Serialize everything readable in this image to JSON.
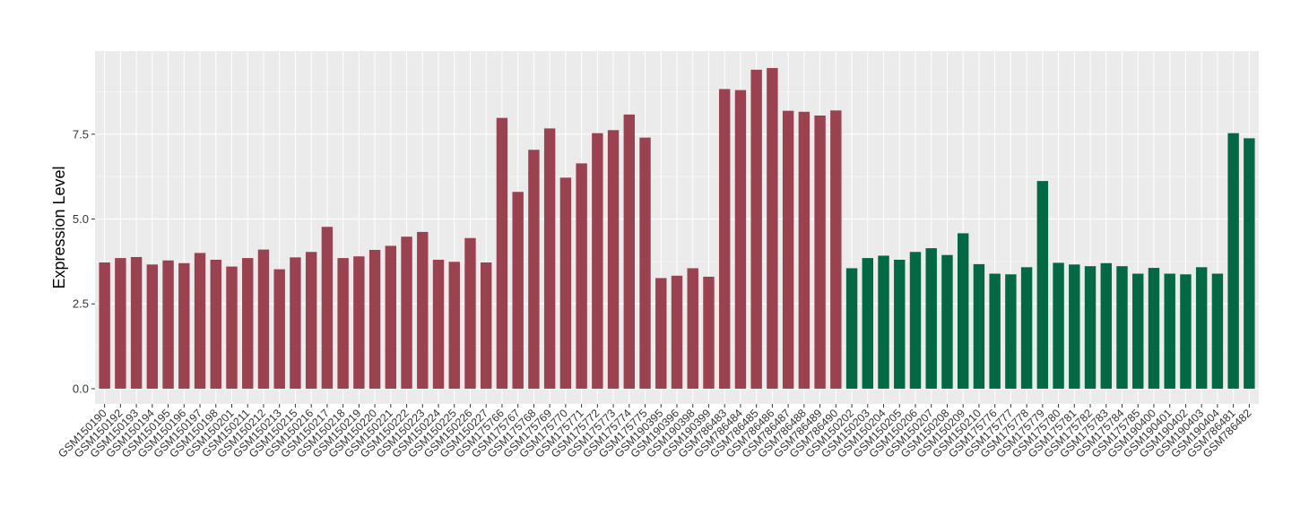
{
  "chart_data": {
    "type": "bar",
    "ylabel": "Expression Level",
    "xlabel": "",
    "title": "",
    "ylim": [
      -0.45,
      9.95
    ],
    "yticks": [
      0.0,
      2.5,
      5.0,
      7.5
    ],
    "ytick_labels": [
      "0.0",
      "2.5",
      "5.0",
      "7.5"
    ],
    "grid": true,
    "legend": "none",
    "colors": {
      "group1": "#9B4250",
      "group2": "#036844",
      "panel": "#EBEBEB",
      "grid_major": "#FFFFFF",
      "grid_minor": "#F5F5F5"
    },
    "categories": [
      "GSM150190",
      "GSM150192",
      "GSM150193",
      "GSM150194",
      "GSM150195",
      "GSM150196",
      "GSM150197",
      "GSM150198",
      "GSM150201",
      "GSM150211",
      "GSM150212",
      "GSM150213",
      "GSM150215",
      "GSM150216",
      "GSM150217",
      "GSM150218",
      "GSM150219",
      "GSM150220",
      "GSM150221",
      "GSM150222",
      "GSM150223",
      "GSM150224",
      "GSM150225",
      "GSM150226",
      "GSM150227",
      "GSM175766",
      "GSM175767",
      "GSM175768",
      "GSM175769",
      "GSM175770",
      "GSM175771",
      "GSM175772",
      "GSM175773",
      "GSM175774",
      "GSM175775",
      "GSM190395",
      "GSM190396",
      "GSM190398",
      "GSM190399",
      "GSM786483",
      "GSM786484",
      "GSM786485",
      "GSM786486",
      "GSM786487",
      "GSM786488",
      "GSM786489",
      "GSM786490",
      "GSM150202",
      "GSM150203",
      "GSM150204",
      "GSM150205",
      "GSM150206",
      "GSM150207",
      "GSM150208",
      "GSM150209",
      "GSM150210",
      "GSM175776",
      "GSM175777",
      "GSM175778",
      "GSM175779",
      "GSM175780",
      "GSM175781",
      "GSM175782",
      "GSM175783",
      "GSM175784",
      "GSM175785",
      "GSM190400",
      "GSM190401",
      "GSM190402",
      "GSM190403",
      "GSM190404",
      "GSM786481",
      "GSM786482"
    ],
    "values": [
      3.72,
      3.85,
      3.88,
      3.66,
      3.78,
      3.7,
      4.0,
      3.8,
      3.6,
      3.85,
      4.1,
      3.52,
      3.87,
      4.03,
      4.77,
      3.85,
      3.9,
      4.09,
      4.21,
      4.48,
      4.62,
      3.8,
      3.74,
      4.44,
      3.72,
      7.98,
      5.8,
      7.04,
      7.67,
      6.22,
      6.64,
      7.53,
      7.62,
      8.08,
      7.4,
      3.26,
      3.33,
      3.55,
      3.3,
      8.83,
      8.8,
      9.4,
      9.45,
      8.19,
      8.16,
      8.05,
      8.2,
      3.55,
      3.85,
      3.92,
      3.8,
      4.03,
      4.14,
      3.94,
      4.58,
      3.67,
      3.39,
      3.37,
      3.58,
      6.12,
      3.71,
      3.66,
      3.61,
      3.7,
      3.61,
      3.39,
      3.56,
      3.39,
      3.37,
      3.58,
      3.39,
      7.53,
      7.38
    ],
    "groups": [
      1,
      1,
      1,
      1,
      1,
      1,
      1,
      1,
      1,
      1,
      1,
      1,
      1,
      1,
      1,
      1,
      1,
      1,
      1,
      1,
      1,
      1,
      1,
      1,
      1,
      1,
      1,
      1,
      1,
      1,
      1,
      1,
      1,
      1,
      1,
      1,
      1,
      1,
      1,
      1,
      1,
      1,
      1,
      1,
      1,
      1,
      1,
      2,
      2,
      2,
      2,
      2,
      2,
      2,
      2,
      2,
      2,
      2,
      2,
      2,
      2,
      2,
      2,
      2,
      2,
      2,
      2,
      2,
      2,
      2,
      2,
      2,
      2
    ]
  }
}
